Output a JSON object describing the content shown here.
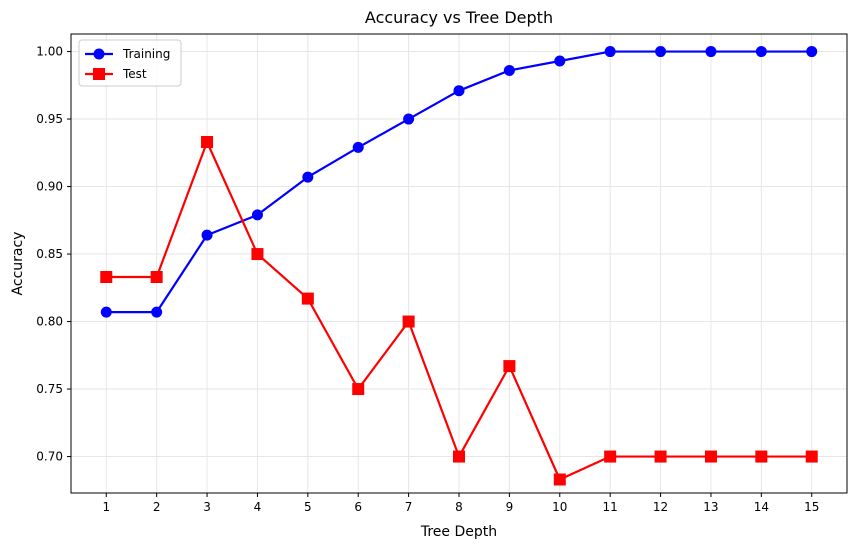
{
  "chart_data": {
    "type": "line",
    "title": "Accuracy vs Tree Depth",
    "xlabel": "Tree Depth",
    "ylabel": "Accuracy",
    "x": [
      1,
      2,
      3,
      4,
      5,
      6,
      7,
      8,
      9,
      10,
      11,
      12,
      13,
      14,
      15
    ],
    "xlim": [
      0.3,
      15.7
    ],
    "ylim": [
      0.673,
      1.013
    ],
    "yticks": [
      0.7,
      0.75,
      0.8,
      0.85,
      0.9,
      0.95,
      1.0
    ],
    "ytick_labels": [
      "0.70",
      "0.75",
      "0.80",
      "0.85",
      "0.90",
      "0.95",
      "1.00"
    ],
    "xtick_labels": [
      "1",
      "2",
      "3",
      "4",
      "5",
      "6",
      "7",
      "8",
      "9",
      "10",
      "11",
      "12",
      "13",
      "14",
      "15"
    ],
    "grid": true,
    "legend_position": "top-left",
    "series": [
      {
        "name": "Training",
        "color": "#0000ff",
        "marker": "circle",
        "values": [
          0.807,
          0.807,
          0.864,
          0.879,
          0.907,
          0.929,
          0.95,
          0.971,
          0.986,
          0.993,
          1.0,
          1.0,
          1.0,
          1.0,
          1.0
        ]
      },
      {
        "name": "Test",
        "color": "#ff0000",
        "marker": "square",
        "values": [
          0.833,
          0.833,
          0.933,
          0.85,
          0.817,
          0.75,
          0.8,
          0.7,
          0.767,
          0.683,
          0.7,
          0.7,
          0.7,
          0.7,
          0.7
        ]
      }
    ]
  }
}
